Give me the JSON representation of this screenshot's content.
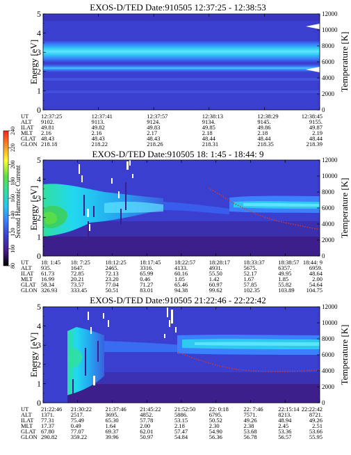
{
  "colors": {
    "background": "#3a3fd0",
    "deep": "#3c1f8a",
    "band_core": "#2ec8f0",
    "band_edge": "#6fa8ff",
    "cyan": "#22d8f0",
    "green": "#3ad16a",
    "red_trace": "#e8341c",
    "white": "#ffffff"
  },
  "colorbar": {
    "label": "Second Harmonic Current",
    "ticks": [
      "80",
      "100",
      "120",
      "140",
      "160",
      "180",
      "200",
      "220",
      "240"
    ],
    "colors": [
      "#000000",
      "#4a1a8a",
      "#3a3fd0",
      "#3a80ff",
      "#25c8f0",
      "#30e0a0",
      "#60e040",
      "#ffff30",
      "#ff9020",
      "#ff2020"
    ]
  },
  "row_labels": [
    "UT",
    "ALT",
    "ILAT",
    "MLT",
    "GLAT",
    "GLON"
  ],
  "chart_data": [
    {
      "type": "heatmap",
      "title": "EXOS-D/TED   Date:910505  12:37:25 - 12:38:53",
      "ylabel": "Energy [eV]",
      "y2label": "Temperature [K]",
      "ylim": [
        0,
        5
      ],
      "y2lim": [
        0,
        12000
      ],
      "yticks": [
        "0",
        "1",
        "2",
        "3",
        "4",
        "5"
      ],
      "y2ticks": [
        "0",
        "2000",
        "4000",
        "6000",
        "8000",
        "10000",
        "12000"
      ],
      "table": [
        [
          "12:37:25",
          "12:37:41",
          "12:37:57",
          "12:38:13",
          "12:38:29",
          "12:38:45"
        ],
        [
          "9102.",
          "9113.",
          "9124.",
          "9134.",
          "9145.",
          "9155."
        ],
        [
          "49.81",
          "49.82",
          "49.83",
          "49.85",
          "49.86",
          "49.87"
        ],
        [
          "2.16",
          "2.16",
          "2.17",
          "2.18",
          "2.18",
          "2.19"
        ],
        [
          "48.43",
          "48.43",
          "48.43",
          "48.44",
          "48.44",
          "48.44"
        ],
        [
          "218.18",
          "218.22",
          "218.26",
          "218.31",
          "218.35",
          "218.39"
        ]
      ]
    },
    {
      "type": "heatmap",
      "title": "EXOS-D/TED   Date:910505  18: 1:45 - 18:44: 9",
      "ylabel": "Energy [eV]",
      "y2label": "Temperature [K]",
      "ylim": [
        0,
        5
      ],
      "y2lim": [
        0,
        12000
      ],
      "yticks": [
        "0",
        "1",
        "2",
        "3",
        "4",
        "5"
      ],
      "y2ticks": [
        "0",
        "2000",
        "4000",
        "6000",
        "8000",
        "10000",
        "12000"
      ],
      "table": [
        [
          "18: 1:45",
          "18: 7:25",
          "18:12:25",
          "18:17:45",
          "18:22:57",
          "18:28:17",
          "18:33:37",
          "18:38:57",
          "18:44: 9"
        ],
        [
          "935.",
          "1647.",
          "2465.",
          "3316.",
          "4133.",
          "4931.",
          "5675.",
          "6357.",
          "6959."
        ],
        [
          "61.73",
          "72.85",
          "72.13",
          "65.99",
          "60.16",
          "55.50",
          "52.17",
          "49.95",
          "48.64"
        ],
        [
          "16.99",
          "20.21",
          "23.20",
          "0.46",
          "1.05",
          "1.42",
          "1.67",
          "1.85",
          "2.00"
        ],
        [
          "58.34",
          "73.57",
          "77.04",
          "71.27",
          "65.46",
          "60.97",
          "57.85",
          "55.82",
          "54.64"
        ],
        [
          "326.93",
          "333.45",
          "50.51",
          "83.01",
          "94.38",
          "99.62",
          "102.35",
          "103.89",
          "104.75"
        ]
      ]
    },
    {
      "type": "heatmap",
      "title": "EXOS-D/TED   Date:910505  21:22:46 - 22:22:42",
      "ylabel": "Energy [eV]",
      "y2label": "Temperature [K]",
      "ylim": [
        0,
        5
      ],
      "y2lim": [
        0,
        12000
      ],
      "yticks": [
        "0",
        "1",
        "2",
        "3",
        "4",
        "5"
      ],
      "y2ticks": [
        "0",
        "2000",
        "4000",
        "6000",
        "8000",
        "10000",
        "12000"
      ],
      "table": [
        [
          "21:22:46",
          "21:30:22",
          "21:37:46",
          "21:45:22",
          "21:52:50",
          "22: 0:18",
          "22: 7:46",
          "22:15:14",
          "22:22:42"
        ],
        [
          "1371.",
          "2517.",
          "3695.",
          "4852.",
          "5886.",
          "6795.",
          "7571.",
          "8213.",
          "8721."
        ],
        [
          "77.31",
          "75.49",
          "65.30",
          "57.78",
          "53.15",
          "50.52",
          "49.26",
          "48.94",
          "49.26"
        ],
        [
          "17.37",
          "0.49",
          "1.64",
          "2.00",
          "2.18",
          "2.30",
          "2.38",
          "2.45",
          "2.51"
        ],
        [
          "67.80",
          "77.07",
          "69.37",
          "62.01",
          "57.47",
          "54.90",
          "53.68",
          "53.36",
          "53.66"
        ],
        [
          "290.82",
          "359.22",
          "39.96",
          "50.97",
          "54.84",
          "56.36",
          "56.78",
          "56.57",
          "55.95"
        ]
      ]
    }
  ]
}
